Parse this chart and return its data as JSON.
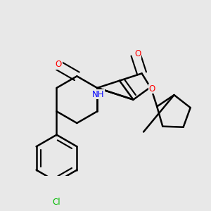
{
  "background_color": "#e8e8e8",
  "bond_color": "#000000",
  "atom_colors": {
    "O": "#ff0000",
    "N": "#0000ff",
    "Cl": "#00bb00",
    "C": "#000000"
  },
  "bond_width": 1.8,
  "font_size_atom": 8.5,
  "fig_bg": "#e8e8e8"
}
